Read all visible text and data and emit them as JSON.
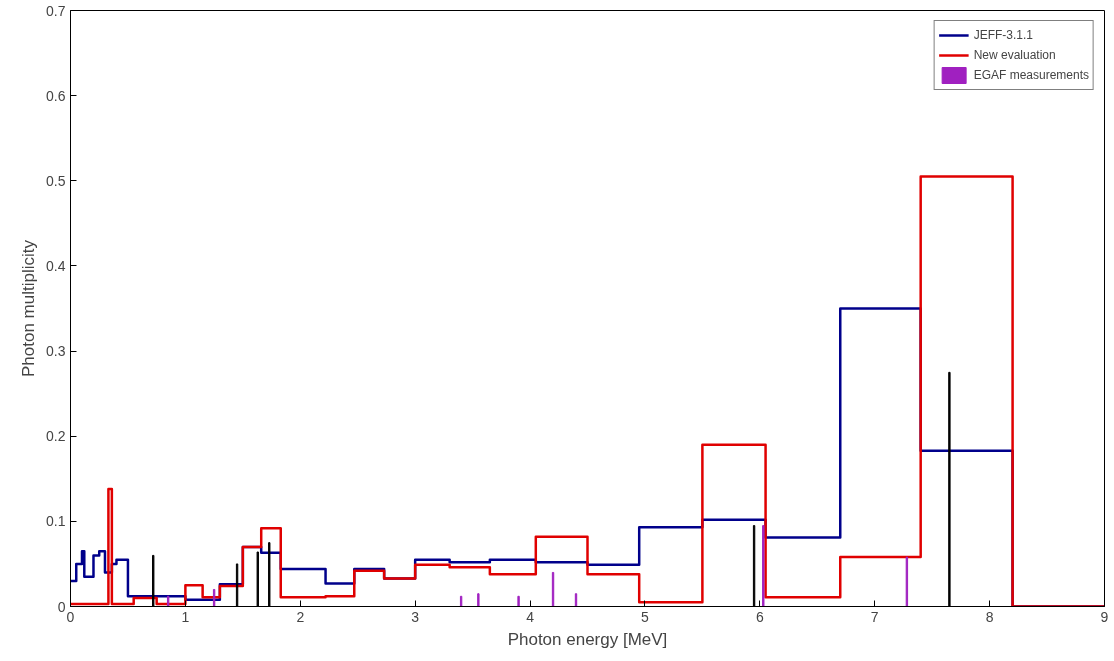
{
  "chart_data": {
    "type": "step",
    "xlabel": "Photon energy [MeV]",
    "ylabel": "Photon multiplicity",
    "xlim": [
      0,
      9
    ],
    "xticks": [
      0,
      1,
      2,
      3,
      4,
      5,
      6,
      7,
      8,
      9
    ],
    "ylim": [
      0,
      0.7
    ],
    "yticks": [
      0,
      0.1,
      0.2,
      0.3,
      0.4,
      0.5,
      0.6,
      0.7
    ],
    "grid": false,
    "legend": "top right",
    "series": [
      {
        "name": "JEFF-3.1.1",
        "color": "#00008b",
        "x": [
          0,
          0.05,
          0.1,
          0.12,
          0.2,
          0.25,
          0.3,
          0.36,
          0.4,
          0.49,
          0.5,
          0.75,
          1.0,
          1.3,
          1.5,
          1.66,
          1.83,
          2.22,
          2.47,
          2.73,
          3.0,
          3.3,
          3.65,
          4.05,
          4.5,
          4.95,
          5.5,
          6.05,
          6.7,
          7.4,
          8.2,
          9.0
        ],
        "values": [
          0.03,
          0.05,
          0.065,
          0.035,
          0.06,
          0.065,
          0.04,
          0.05,
          0.055,
          0.055,
          0.012,
          0.012,
          0.008,
          0.026,
          0.07,
          0.063,
          0.044,
          0.027,
          0.044,
          0.033,
          0.055,
          0.052,
          0.055,
          0.052,
          0.049,
          0.093,
          0.102,
          0.081,
          0.35,
          0.183,
          0,
          0
        ]
      },
      {
        "name": "New evaluation",
        "color": "#e00000",
        "x": [
          0,
          0.3,
          0.33,
          0.36,
          0.55,
          0.75,
          1.0,
          1.15,
          1.3,
          1.5,
          1.66,
          1.83,
          2.22,
          2.47,
          2.73,
          3.0,
          3.3,
          3.65,
          4.05,
          4.5,
          4.95,
          5.5,
          6.05,
          6.7,
          7.4,
          8.2,
          9.0
        ],
        "values": [
          0.003,
          0.003,
          0.138,
          0.003,
          0.01,
          0.003,
          0.025,
          0.011,
          0.024,
          0.07,
          0.092,
          0.011,
          0.012,
          0.042,
          0.033,
          0.049,
          0.046,
          0.038,
          0.082,
          0.038,
          0.005,
          0.19,
          0.011,
          0.058,
          0.505,
          0,
          0
        ]
      },
      {
        "name": "EGAF measurements",
        "color": "#a020c0",
        "type": "bar",
        "x": [
          0.85,
          1.25,
          3.4,
          3.55,
          3.9,
          4.2,
          4.4,
          6.03,
          7.28
        ],
        "values": [
          0.012,
          0.02,
          0.012,
          0.015,
          0.012,
          0.04,
          0.015,
          0.095,
          0.058
        ]
      },
      {
        "color": "#000000",
        "type": "bar",
        "x": [
          0.72,
          1.45,
          1.63,
          1.73,
          5.95,
          7.65
        ],
        "values": [
          0.06,
          0.05,
          0.064,
          0.075,
          0.095,
          0.275
        ]
      }
    ]
  }
}
